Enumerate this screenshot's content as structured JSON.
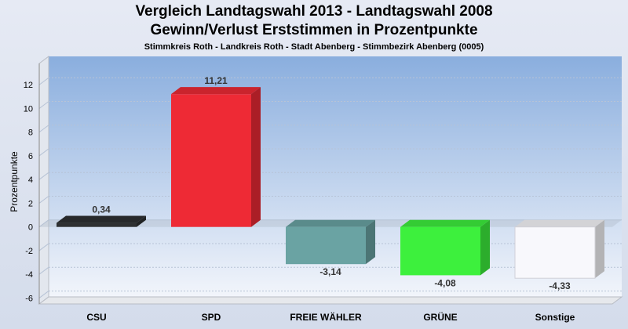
{
  "title": "Vergleich Landtagswahl 2013 - Landtagswahl 2008",
  "subtitle_main": "Gewinn/Verlust Erststimmen in Prozentpunkte",
  "subtitle": "Stimmkreis Roth - Landkreis Roth - Stadt Abenberg - Stimmbezirk Abenberg (0005)",
  "chart_data": {
    "type": "bar",
    "title": "Vergleich Landtagswahl 2013 - Landtagswahl 2008",
    "ylabel": "Prozentpunkte",
    "xlabel": "",
    "ylim": [
      -6.5,
      13.8
    ],
    "yticks": [
      -6,
      -4,
      -2,
      0,
      2,
      4,
      6,
      8,
      10,
      12
    ],
    "categories": [
      "CSU",
      "SPD",
      "FREIE WÄHLER",
      "GRÜNE",
      "Sonstige"
    ],
    "values": [
      0.34,
      11.21,
      -3.14,
      -4.08,
      -4.33
    ],
    "value_labels": [
      "0,34",
      "11,21",
      "-3,14",
      "-4,08",
      "-4,33"
    ],
    "colors": [
      "#2e3032",
      "#ee2a35",
      "#6aa3a3",
      "#3df03d",
      "#f8f8fc"
    ],
    "grid": true
  }
}
